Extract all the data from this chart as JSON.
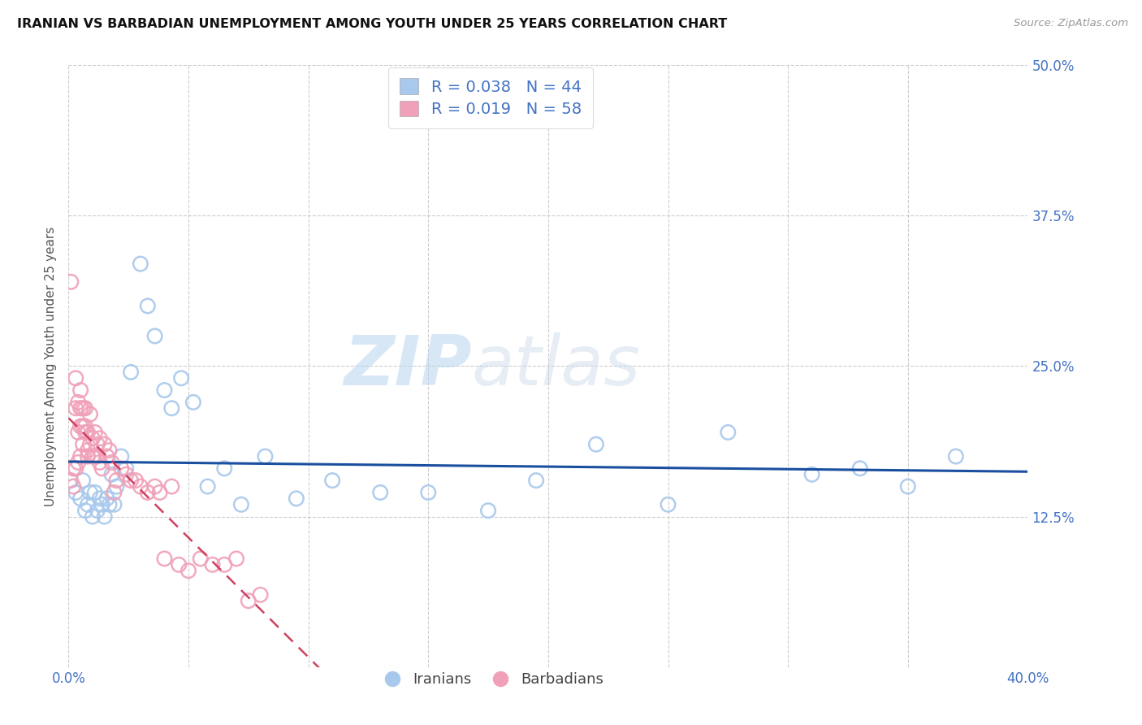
{
  "title": "IRANIAN VS BARBADIAN UNEMPLOYMENT AMONG YOUTH UNDER 25 YEARS CORRELATION CHART",
  "source": "Source: ZipAtlas.com",
  "ylabel": "Unemployment Among Youth under 25 years",
  "xlim": [
    0.0,
    0.4
  ],
  "ylim": [
    0.0,
    0.5
  ],
  "xticks": [
    0.0,
    0.05,
    0.1,
    0.15,
    0.2,
    0.25,
    0.3,
    0.35,
    0.4
  ],
  "xticklabels": [
    "0.0%",
    "",
    "",
    "",
    "",
    "",
    "",
    "",
    "40.0%"
  ],
  "yticks": [
    0.0,
    0.125,
    0.25,
    0.375,
    0.5
  ],
  "yticklabels": [
    "",
    "12.5%",
    "25.0%",
    "37.5%",
    "50.0%"
  ],
  "grid_color": "#c8c8c8",
  "background_color": "#ffffff",
  "iranians_color": "#a8c8ec",
  "barbadians_color": "#f0a0b8",
  "trend_iranians_color": "#1a4fa0",
  "trend_barbadians_color": "#d04060",
  "legend_iranians_label": "R = 0.038   N = 44",
  "legend_barbadians_label": "R = 0.019   N = 58",
  "legend_label_iranians": "Iranians",
  "legend_label_barbadians": "Barbadians",
  "watermark_zip": "ZIP",
  "watermark_atlas": "atlas",
  "iranians_x": [
    0.003,
    0.005,
    0.006,
    0.007,
    0.008,
    0.009,
    0.01,
    0.011,
    0.012,
    0.013,
    0.014,
    0.015,
    0.016,
    0.017,
    0.018,
    0.019,
    0.02,
    0.022,
    0.024,
    0.026,
    0.03,
    0.033,
    0.036,
    0.04,
    0.043,
    0.047,
    0.052,
    0.058,
    0.065,
    0.072,
    0.082,
    0.095,
    0.11,
    0.13,
    0.15,
    0.175,
    0.195,
    0.22,
    0.25,
    0.275,
    0.31,
    0.33,
    0.35,
    0.37
  ],
  "iranians_y": [
    0.145,
    0.14,
    0.155,
    0.13,
    0.135,
    0.145,
    0.125,
    0.145,
    0.13,
    0.14,
    0.135,
    0.125,
    0.14,
    0.135,
    0.16,
    0.135,
    0.15,
    0.175,
    0.165,
    0.245,
    0.335,
    0.3,
    0.275,
    0.23,
    0.215,
    0.24,
    0.22,
    0.15,
    0.165,
    0.135,
    0.175,
    0.14,
    0.155,
    0.145,
    0.145,
    0.13,
    0.155,
    0.185,
    0.135,
    0.195,
    0.16,
    0.165,
    0.15,
    0.175
  ],
  "barbadians_x": [
    0.001,
    0.001,
    0.002,
    0.002,
    0.003,
    0.003,
    0.003,
    0.004,
    0.004,
    0.004,
    0.005,
    0.005,
    0.005,
    0.005,
    0.006,
    0.006,
    0.006,
    0.007,
    0.007,
    0.007,
    0.008,
    0.008,
    0.008,
    0.009,
    0.009,
    0.01,
    0.01,
    0.011,
    0.011,
    0.012,
    0.012,
    0.013,
    0.013,
    0.014,
    0.015,
    0.016,
    0.017,
    0.018,
    0.019,
    0.02,
    0.022,
    0.024,
    0.026,
    0.028,
    0.03,
    0.033,
    0.036,
    0.038,
    0.04,
    0.043,
    0.046,
    0.05,
    0.055,
    0.06,
    0.065,
    0.07,
    0.075,
    0.08
  ],
  "barbadians_y": [
    0.32,
    0.155,
    0.165,
    0.15,
    0.215,
    0.24,
    0.165,
    0.17,
    0.195,
    0.22,
    0.175,
    0.2,
    0.215,
    0.23,
    0.185,
    0.2,
    0.215,
    0.2,
    0.215,
    0.195,
    0.18,
    0.195,
    0.175,
    0.185,
    0.21,
    0.175,
    0.19,
    0.175,
    0.195,
    0.175,
    0.185,
    0.17,
    0.19,
    0.165,
    0.185,
    0.175,
    0.18,
    0.17,
    0.145,
    0.155,
    0.165,
    0.16,
    0.155,
    0.155,
    0.15,
    0.145,
    0.15,
    0.145,
    0.09,
    0.15,
    0.085,
    0.08,
    0.09,
    0.085,
    0.085,
    0.09,
    0.055,
    0.06
  ]
}
